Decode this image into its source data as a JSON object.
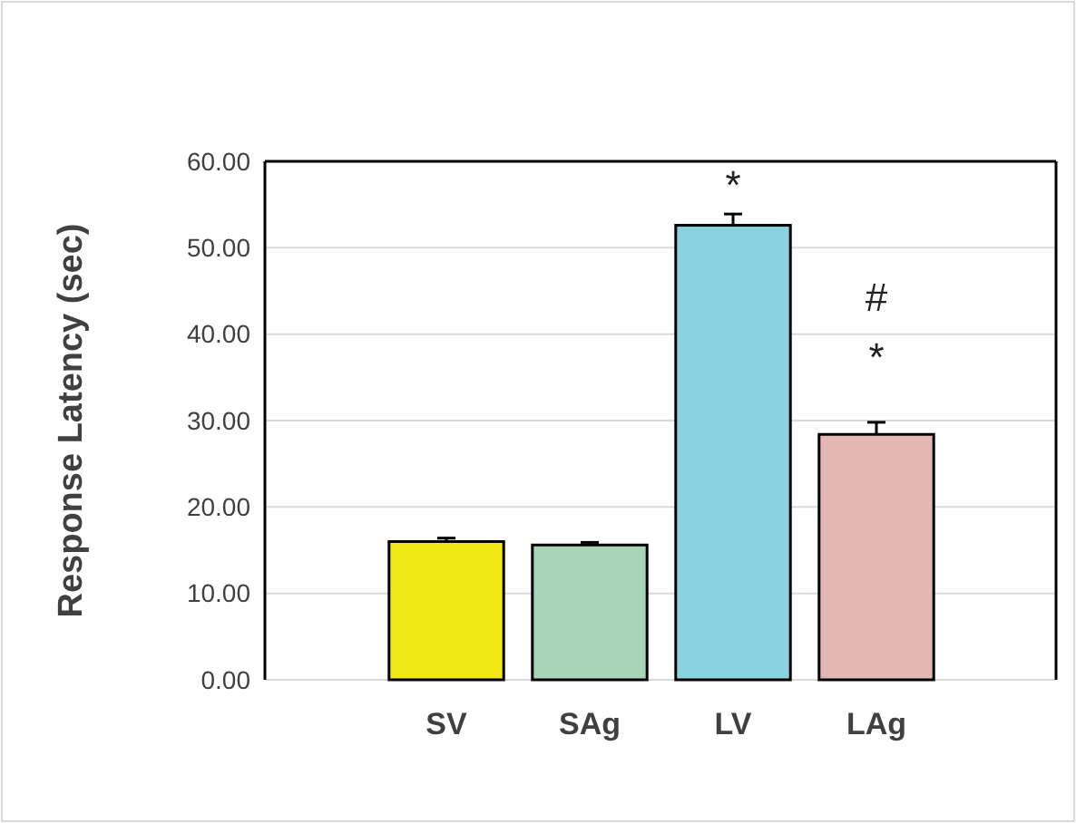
{
  "chart_data": {
    "type": "bar",
    "ylabel": "Response Latency (sec)",
    "categories": [
      "SV",
      "SAg",
      "LV",
      "LAg"
    ],
    "values": [
      16.0,
      15.6,
      52.6,
      28.4
    ],
    "errors": [
      0.4,
      0.3,
      1.3,
      1.4
    ],
    "colors": [
      "#f0e817",
      "#a8d5b8",
      "#8bd2e0",
      "#e4b7b4"
    ],
    "ylim": [
      0,
      60
    ],
    "yticks": [
      {
        "value": 0,
        "label": "0.00"
      },
      {
        "value": 10,
        "label": "10.00"
      },
      {
        "value": 20,
        "label": "20.00"
      },
      {
        "value": 30,
        "label": "30.00"
      },
      {
        "value": 40,
        "label": "40.00"
      },
      {
        "value": 50,
        "label": "50.00"
      },
      {
        "value": 60,
        "label": "60.00"
      }
    ],
    "grid": "y",
    "annotations": [
      "*",
      "#",
      "*"
    ]
  }
}
